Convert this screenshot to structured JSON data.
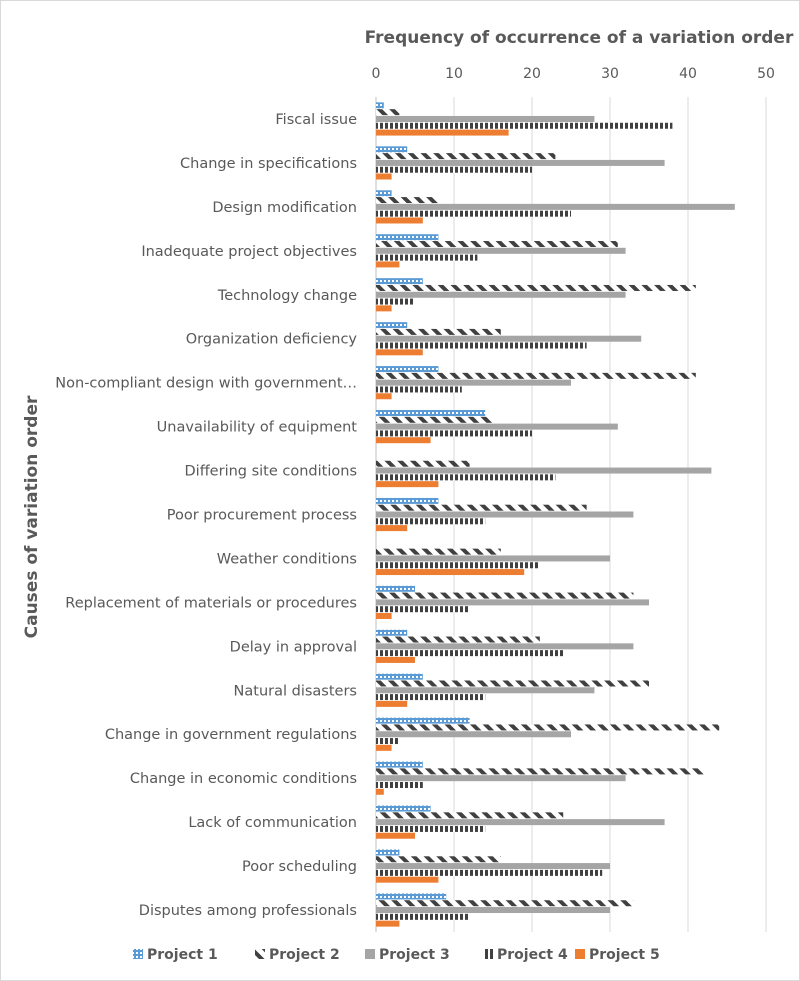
{
  "chart_data": {
    "type": "bar",
    "orientation": "horizontal",
    "title": "Frequency of occurrence of a variation order",
    "ylabel": "Causes of variation order",
    "xlim": [
      0,
      50
    ],
    "xticks": [
      0,
      10,
      20,
      30,
      40,
      50
    ],
    "grid": "vertical",
    "axis_position": "top",
    "legend_position": "bottom",
    "categories": [
      "Fiscal issue",
      "Change in specifications",
      "Design modification",
      "Inadequate project objectives",
      "Technology change",
      "Organization deficiency",
      "Non-compliant design with government…",
      "Unavailability of equipment",
      "Differing site conditions",
      "Poor procurement process",
      "Weather conditions",
      "Replacement of materials or procedures",
      "Delay in approval",
      "Natural disasters",
      "Change in government regulations",
      "Change in economic conditions",
      "Lack of communication",
      "Poor scheduling",
      "Disputes among professionals"
    ],
    "series": [
      {
        "name": "Project 1",
        "color": "#5b9bd5",
        "pattern": "dots",
        "values": [
          1,
          4,
          2,
          8,
          6,
          4,
          8,
          14,
          0,
          8,
          0,
          5,
          4,
          6,
          12,
          6,
          7,
          3,
          9
        ]
      },
      {
        "name": "Project 2",
        "color": "#404040",
        "pattern": "diagonal",
        "values": [
          3,
          23,
          8,
          31,
          41,
          16,
          41,
          15,
          12,
          27,
          16,
          33,
          21,
          35,
          44,
          42,
          24,
          16,
          33
        ]
      },
      {
        "name": "Project 3",
        "color": "#a5a5a5",
        "pattern": "solid",
        "values": [
          28,
          37,
          46,
          32,
          32,
          34,
          25,
          31,
          43,
          33,
          30,
          35,
          33,
          28,
          25,
          32,
          37,
          30,
          30
        ]
      },
      {
        "name": "Project 4",
        "color": "#404040",
        "pattern": "vertical",
        "values": [
          38,
          20,
          25,
          13,
          5,
          27,
          11,
          20,
          23,
          14,
          21,
          12,
          24,
          14,
          3,
          6,
          14,
          29,
          12
        ]
      },
      {
        "name": "Project 5",
        "color": "#ed7d31",
        "pattern": "solid",
        "values": [
          17,
          2,
          6,
          3,
          2,
          6,
          2,
          7,
          8,
          4,
          19,
          2,
          5,
          4,
          2,
          1,
          5,
          8,
          3
        ]
      }
    ]
  }
}
